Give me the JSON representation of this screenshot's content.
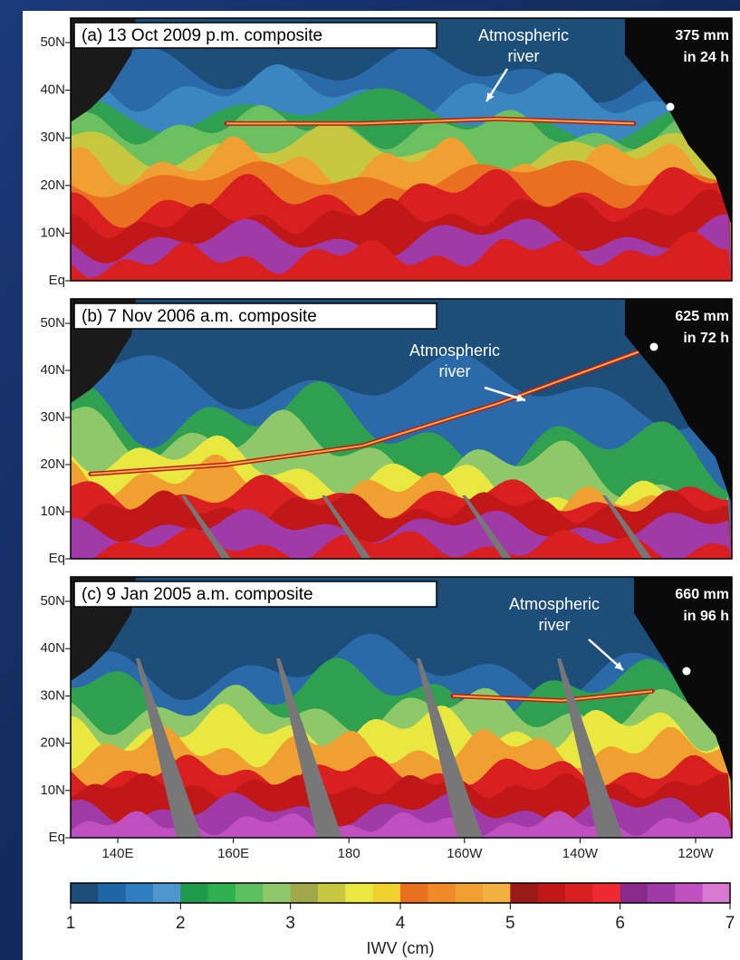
{
  "panels": [
    {
      "label": "(a)  13 Oct 2009 p.m. composite",
      "river_label": [
        "Atmospheric",
        "river"
      ],
      "rain": [
        "375 mm",
        "in 24 h"
      ]
    },
    {
      "label": "(b)  7 Nov 2006 a.m. composite",
      "river_label": [
        "Atmospheric",
        "river"
      ],
      "rain": [
        "625 mm",
        "in 72 h"
      ]
    },
    {
      "label": "(c)  9 Jan 2005 a.m. composite",
      "river_label": [
        "Atmospheric",
        "river"
      ],
      "rain": [
        "660 mm",
        "in 96 h"
      ]
    }
  ],
  "lat_labels": [
    "50N",
    "40N",
    "30N",
    "20N",
    "10N",
    "Eq"
  ],
  "lon_labels": [
    "140E",
    "160E",
    "180",
    "160W",
    "140W",
    "120W"
  ],
  "colorbar": {
    "title": "IWV (cm)",
    "ticks": [
      1,
      2,
      3,
      4,
      5,
      6,
      7
    ],
    "colors": [
      "#1d4e7a",
      "#1f66a6",
      "#2f7fc0",
      "#4f96cf",
      "#1f9a4a",
      "#2fb050",
      "#5cc060",
      "#8ec868",
      "#a0a84a",
      "#c8c840",
      "#e8e840",
      "#f2d030",
      "#e87020",
      "#f08a28",
      "#f0a030",
      "#f2b040",
      "#9a1a1a",
      "#c01818",
      "#d82020",
      "#ee2a30",
      "#8a2a8a",
      "#a03aa8",
      "#c050c0",
      "#d878d0"
    ]
  }
}
